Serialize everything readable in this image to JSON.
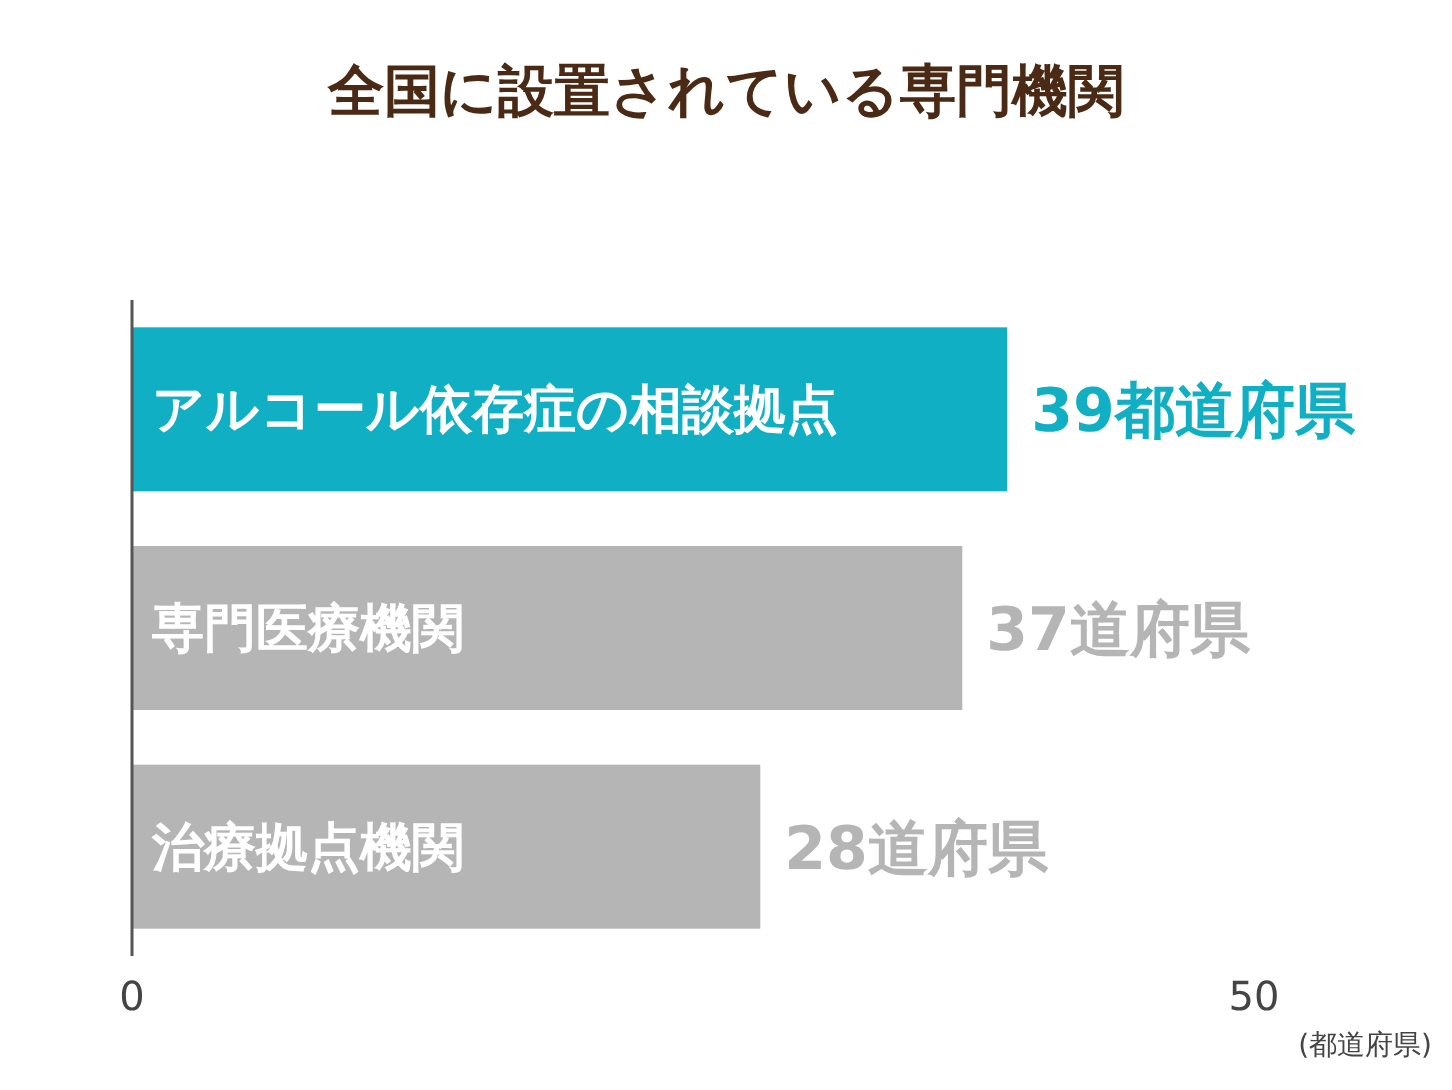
{
  "chart_data": {
    "type": "bar",
    "orientation": "horizontal",
    "title": "全国に設置されている専門機関",
    "xlabel": "(都道府県)",
    "categories": [
      "アルコール依存症の相談拠点",
      "専門医療機関",
      "治療拠点機関"
    ],
    "values": [
      39,
      37,
      28
    ],
    "colors": [
      "#10afc4",
      "#b5b5b5",
      "#b5b5b5"
    ],
    "value_labels": [
      "39都道府県",
      "37道府県",
      "28道府県"
    ],
    "xlim": [
      0,
      50
    ],
    "xticks": [
      0,
      50
    ],
    "grid": false
  }
}
